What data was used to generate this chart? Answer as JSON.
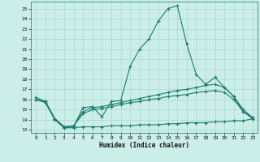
{
  "xlabel": "Humidex (Indice chaleur)",
  "bg_color": "#cceee8",
  "grid_color": "#aad8d0",
  "line_color": "#1a7a6e",
  "xlim": [
    -0.5,
    23.5
  ],
  "ylim": [
    12.7,
    25.7
  ],
  "yticks": [
    13,
    14,
    15,
    16,
    17,
    18,
    19,
    20,
    21,
    22,
    23,
    24,
    25
  ],
  "xticks": [
    0,
    1,
    2,
    3,
    4,
    5,
    6,
    7,
    8,
    9,
    10,
    11,
    12,
    13,
    14,
    15,
    16,
    17,
    18,
    19,
    20,
    21,
    22,
    23
  ],
  "line1_x": [
    0,
    1,
    2,
    3,
    4,
    5,
    6,
    7,
    8,
    9,
    10,
    11,
    12,
    13,
    14,
    15,
    16,
    17,
    18,
    19,
    20,
    21,
    22,
    23
  ],
  "line1_y": [
    16.2,
    15.8,
    14.1,
    13.2,
    13.3,
    15.2,
    15.3,
    14.3,
    15.8,
    15.9,
    19.3,
    21.0,
    22.0,
    23.8,
    25.0,
    25.3,
    21.5,
    18.5,
    17.5,
    18.2,
    17.2,
    16.3,
    14.8,
    14.2
  ],
  "line2_x": [
    0,
    1,
    2,
    3,
    4,
    5,
    6,
    7,
    8,
    9,
    10,
    11,
    12,
    13,
    14,
    15,
    16,
    17,
    18,
    19,
    20,
    21,
    22,
    23
  ],
  "line2_y": [
    16.0,
    15.8,
    14.1,
    13.3,
    13.4,
    14.8,
    15.2,
    15.3,
    15.5,
    15.7,
    15.9,
    16.1,
    16.3,
    16.5,
    16.7,
    16.9,
    17.0,
    17.2,
    17.4,
    17.5,
    17.2,
    16.3,
    15.0,
    14.2
  ],
  "line3_x": [
    0,
    1,
    2,
    3,
    4,
    5,
    6,
    7,
    8,
    9,
    10,
    11,
    12,
    13,
    14,
    15,
    16,
    17,
    18,
    19,
    20,
    21,
    22,
    23
  ],
  "line3_y": [
    16.0,
    15.8,
    14.1,
    13.3,
    13.4,
    14.6,
    15.0,
    15.1,
    15.3,
    15.5,
    15.7,
    15.8,
    16.0,
    16.1,
    16.3,
    16.4,
    16.5,
    16.7,
    16.8,
    16.9,
    16.7,
    16.0,
    14.8,
    14.1
  ],
  "line4_x": [
    0,
    1,
    2,
    3,
    4,
    5,
    6,
    7,
    8,
    9,
    10,
    11,
    12,
    13,
    14,
    15,
    16,
    17,
    18,
    19,
    20,
    21,
    22,
    23
  ],
  "line4_y": [
    16.0,
    15.7,
    14.0,
    13.2,
    13.2,
    13.3,
    13.3,
    13.3,
    13.4,
    13.4,
    13.4,
    13.5,
    13.5,
    13.5,
    13.6,
    13.6,
    13.7,
    13.7,
    13.7,
    13.8,
    13.8,
    13.9,
    13.9,
    14.1
  ]
}
